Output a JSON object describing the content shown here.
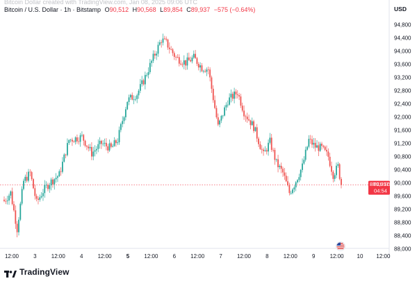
{
  "header": {
    "caption": "Bitcoin Dollar created with TradingView.com, Jan 08, 2025 09:06 UTC",
    "symbol": "Bitcoin / U.S. Dollar · 1h · Bitstamp",
    "open_label": "O",
    "open": "90,512",
    "high_label": "H",
    "high": "90,568",
    "low_label": "L",
    "low": "89,854",
    "close_label": "C",
    "close": "89,937",
    "change": "−575 (−0.64%)"
  },
  "currency": "USD",
  "price_tag": {
    "symbol": "BTCUSD",
    "price": "89,937",
    "countdown": "04:54"
  },
  "logo": {
    "text": "TradingView"
  },
  "colors": {
    "up": "#26a69a",
    "down": "#ef5350",
    "price_line": "#f23645",
    "axis_text": "#131722"
  },
  "icons": {
    "event_marker": "us-flag-icon",
    "logo": "tradingview-logo-icon"
  },
  "chart_data": {
    "type": "candlestick",
    "title": "",
    "xlabel": "",
    "ylabel": "",
    "ylim": [
      87800,
      95300
    ],
    "y_ticks": [
      88000,
      88400,
      88800,
      89200,
      89600,
      90000,
      90400,
      90800,
      91200,
      91600,
      92000,
      92400,
      92800,
      93200,
      93600,
      94000,
      94400,
      94800
    ],
    "y_tick_labels": [
      "88,000",
      "88,400",
      "88,800",
      "89,200",
      "89,600",
      "90,000",
      "90,400",
      "90,800",
      "91,200",
      "91,600",
      "92,000",
      "92,400",
      "92,800",
      "93,200",
      "93,600",
      "94,000",
      "94,400",
      "94,800"
    ],
    "x_ticks": [
      {
        "label": "12:00",
        "bold": false
      },
      {
        "label": "3",
        "bold": false
      },
      {
        "label": "12:00",
        "bold": false
      },
      {
        "label": "4",
        "bold": false
      },
      {
        "label": "12:00",
        "bold": false
      },
      {
        "label": "5",
        "bold": true
      },
      {
        "label": "12:00",
        "bold": false
      },
      {
        "label": "6",
        "bold": false
      },
      {
        "label": "12:00",
        "bold": false
      },
      {
        "label": "7",
        "bold": false
      },
      {
        "label": "12:00",
        "bold": false
      },
      {
        "label": "8",
        "bold": false
      },
      {
        "label": "12:00",
        "bold": false
      },
      {
        "label": "9",
        "bold": false
      },
      {
        "label": "12:00",
        "bold": false
      },
      {
        "label": "10",
        "bold": false
      },
      {
        "label": "12:00",
        "bold": false
      }
    ],
    "last_price": 89937,
    "grid": false,
    "waypoints": [
      [
        0,
        89450
      ],
      [
        4,
        89700
      ],
      [
        8,
        88600
      ],
      [
        12,
        90050
      ],
      [
        16,
        90300
      ],
      [
        20,
        89400
      ],
      [
        24,
        89750
      ],
      [
        28,
        90000
      ],
      [
        34,
        90250
      ],
      [
        40,
        91300
      ],
      [
        48,
        91400
      ],
      [
        54,
        90900
      ],
      [
        60,
        91200
      ],
      [
        66,
        91050
      ],
      [
        70,
        91300
      ],
      [
        76,
        92500
      ],
      [
        82,
        92700
      ],
      [
        86,
        93100
      ],
      [
        92,
        93800
      ],
      [
        97,
        94350
      ],
      [
        100,
        94250
      ],
      [
        106,
        93800
      ],
      [
        112,
        93650
      ],
      [
        117,
        93800
      ],
      [
        122,
        93500
      ],
      [
        126,
        93450
      ],
      [
        132,
        91700
      ],
      [
        138,
        92500
      ],
      [
        144,
        92750
      ],
      [
        148,
        92150
      ],
      [
        154,
        91700
      ],
      [
        160,
        90850
      ],
      [
        164,
        91250
      ],
      [
        168,
        90600
      ],
      [
        172,
        90300
      ],
      [
        176,
        89700
      ],
      [
        179,
        89950
      ],
      [
        184,
        90500
      ],
      [
        188,
        91300
      ],
      [
        192,
        91100
      ],
      [
        196,
        91050
      ],
      [
        200,
        90800
      ],
      [
        203,
        90250
      ],
      [
        206,
        90500
      ],
      [
        208,
        89937
      ]
    ]
  }
}
